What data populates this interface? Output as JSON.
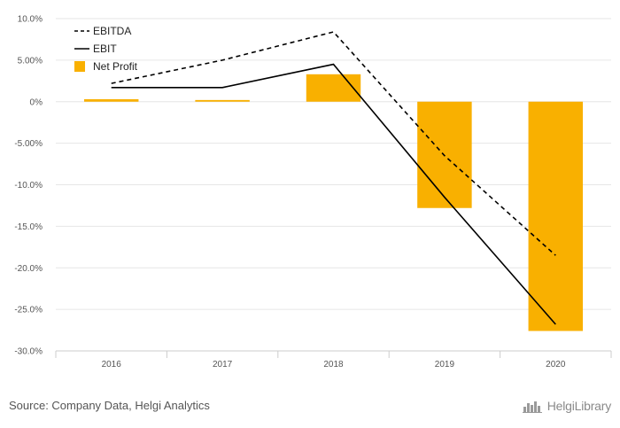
{
  "chart_data": {
    "type": "bar",
    "categories": [
      "2016",
      "2017",
      "2018",
      "2019",
      "2020"
    ],
    "ylim": [
      -30,
      10
    ],
    "yticks": [
      10,
      5,
      0,
      -5,
      -10,
      -15,
      -20,
      -25,
      -30
    ],
    "ytick_labels": [
      "10.0%",
      "5.00%",
      "0%",
      "-5.00%",
      "-10.0%",
      "-15.0%",
      "-20.0%",
      "-25.0%",
      "-30.0%"
    ],
    "grid": true,
    "legend_position": "top-left",
    "series": [
      {
        "name": "EBITDA",
        "kind": "line",
        "style": "dashed",
        "color": "#000000",
        "values": [
          2.2,
          5.0,
          8.4,
          -6.5,
          -18.5
        ]
      },
      {
        "name": "EBIT",
        "kind": "line",
        "style": "solid",
        "color": "#000000",
        "values": [
          1.7,
          1.7,
          4.5,
          -11.5,
          -26.8
        ]
      },
      {
        "name": "Net Profit",
        "kind": "bar",
        "color": "#f9b000",
        "values": [
          0.3,
          0.2,
          3.3,
          -12.8,
          -27.6
        ]
      }
    ]
  },
  "footer": {
    "source": "Source: Company Data, Helgi Analytics",
    "brand": "HelgiLibrary"
  }
}
